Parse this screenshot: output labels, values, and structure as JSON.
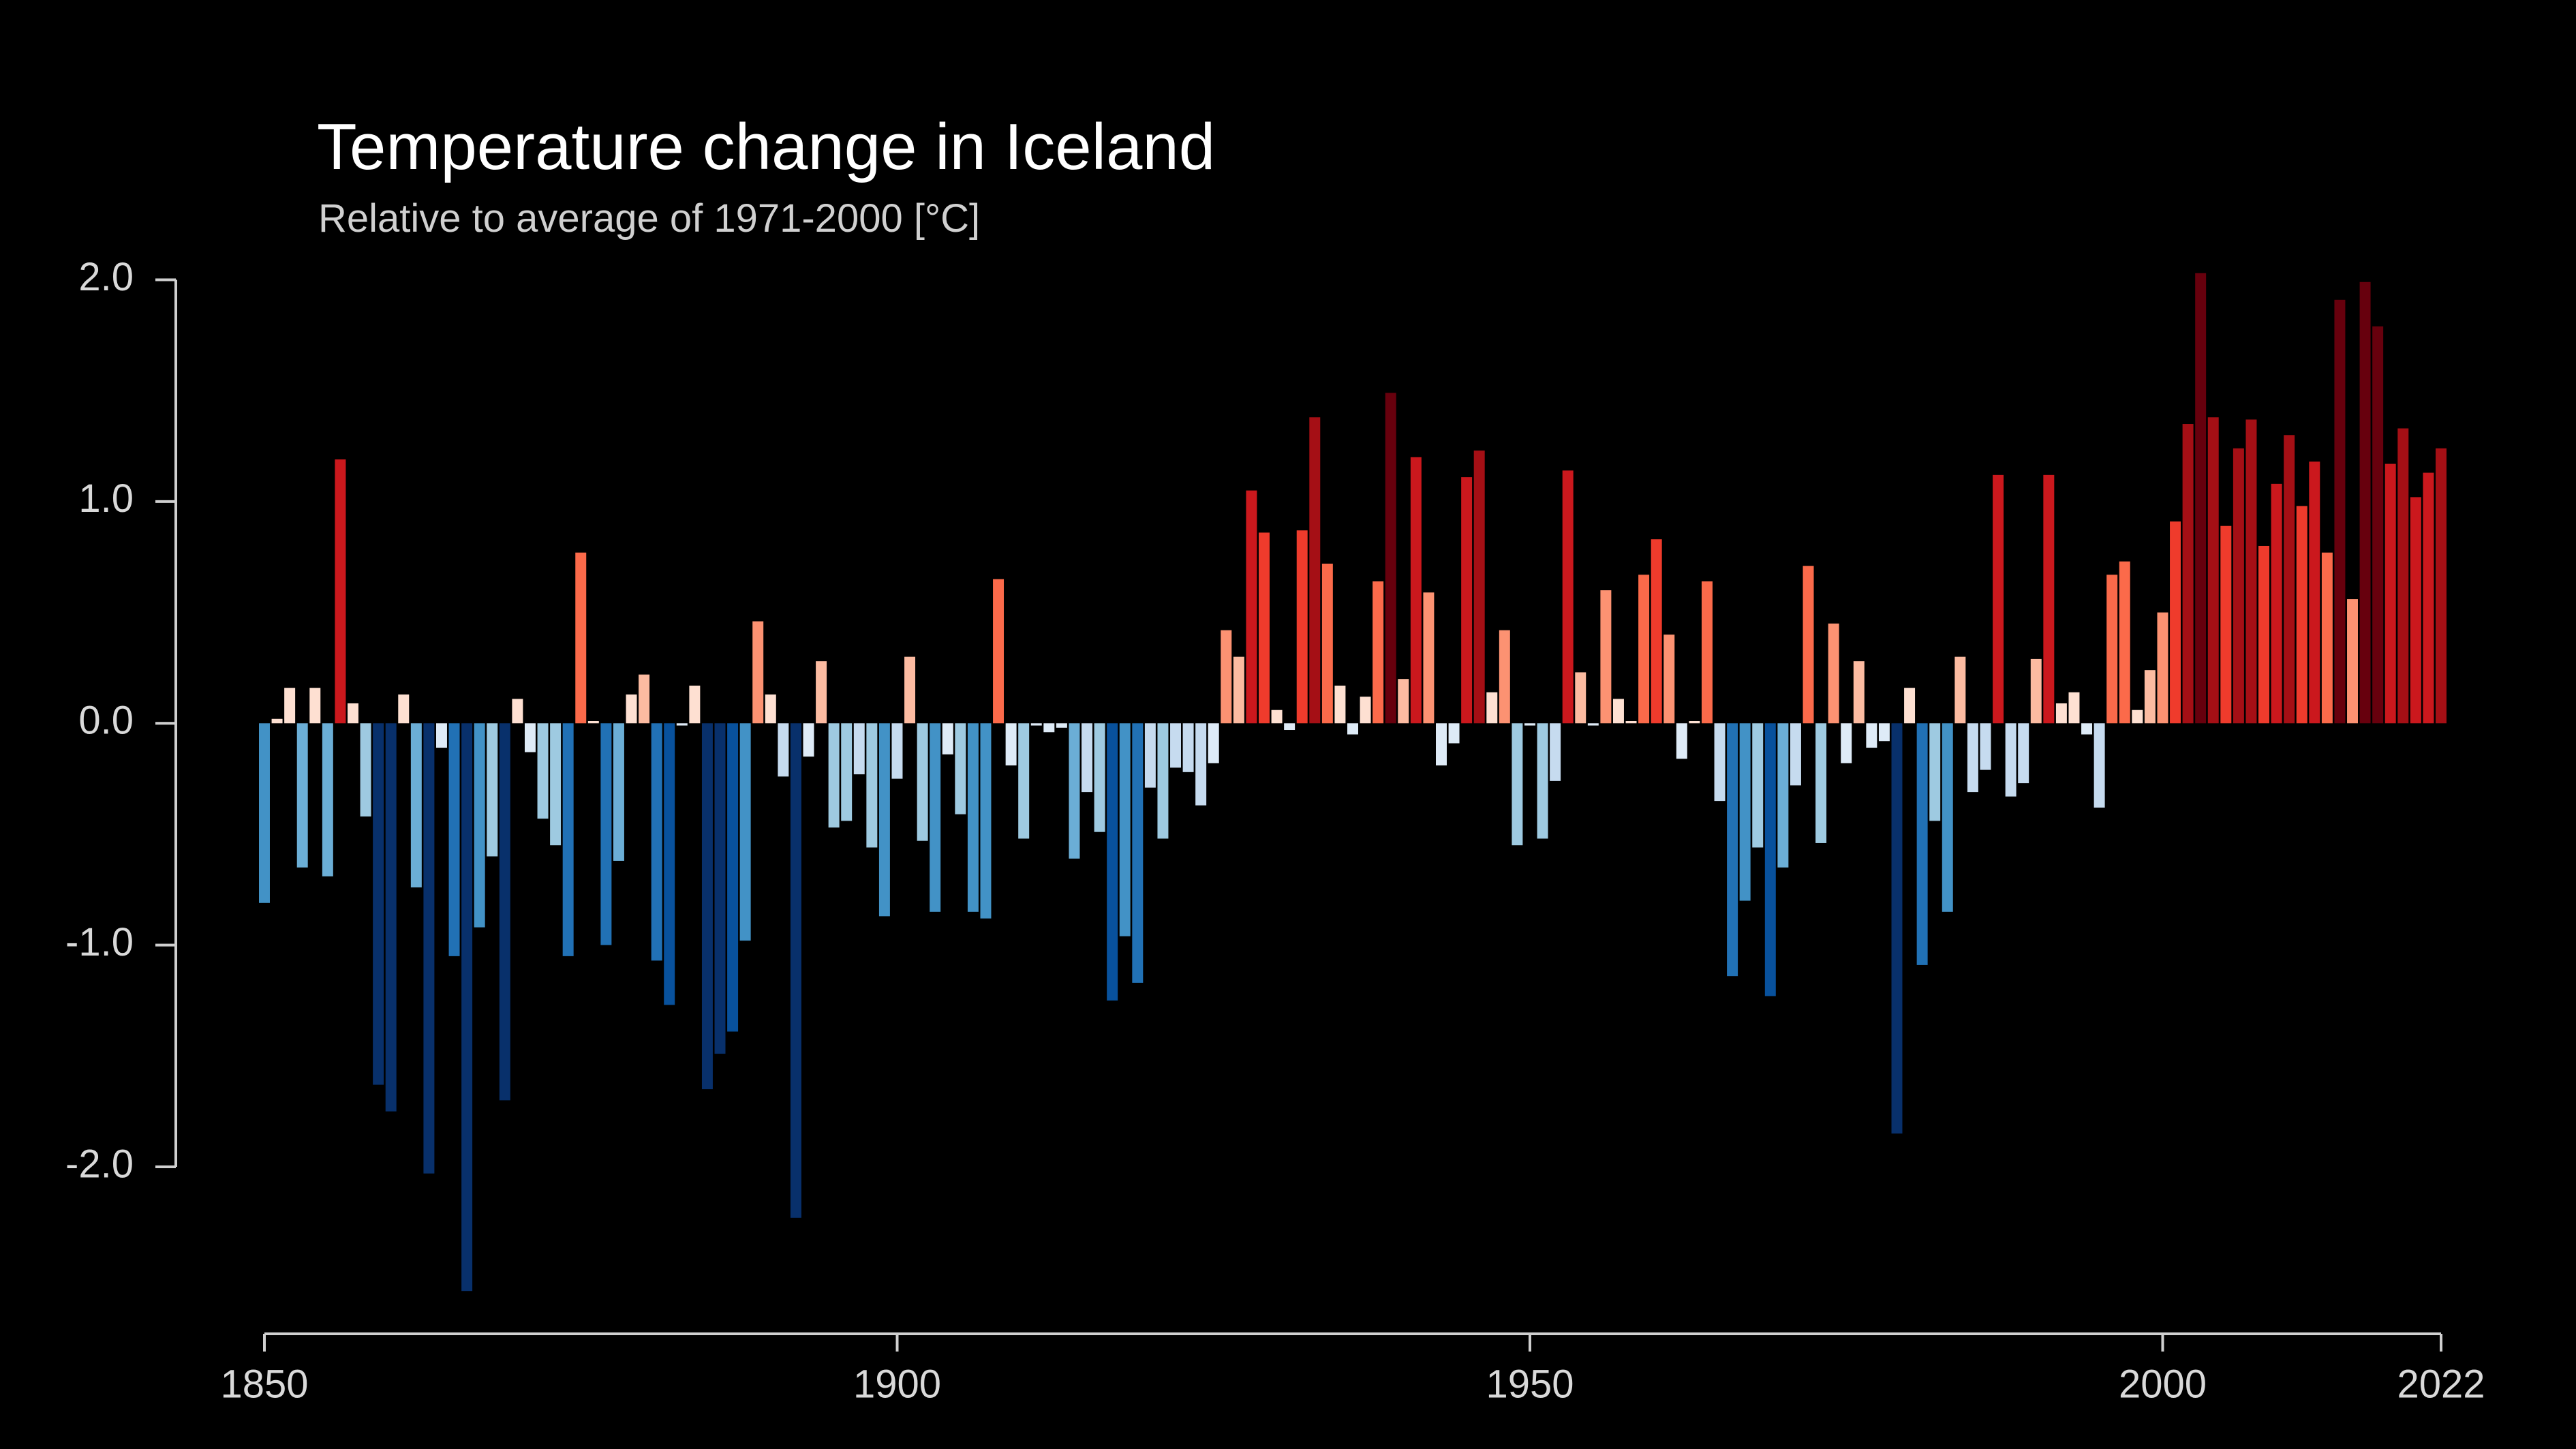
{
  "chart_data": {
    "type": "bar",
    "title": "Temperature change in Iceland",
    "subtitle": "Relative to average of 1971-2000  [°C]",
    "x": [
      1850,
      1851,
      1852,
      1853,
      1854,
      1855,
      1856,
      1857,
      1858,
      1859,
      1860,
      1861,
      1862,
      1863,
      1864,
      1865,
      1866,
      1867,
      1868,
      1869,
      1870,
      1871,
      1872,
      1873,
      1874,
      1875,
      1876,
      1877,
      1878,
      1879,
      1880,
      1881,
      1882,
      1883,
      1884,
      1885,
      1886,
      1887,
      1888,
      1889,
      1890,
      1891,
      1892,
      1893,
      1894,
      1895,
      1896,
      1897,
      1898,
      1899,
      1900,
      1901,
      1902,
      1903,
      1904,
      1905,
      1906,
      1907,
      1908,
      1909,
      1910,
      1911,
      1912,
      1913,
      1914,
      1915,
      1916,
      1917,
      1918,
      1919,
      1920,
      1921,
      1922,
      1923,
      1924,
      1925,
      1926,
      1927,
      1928,
      1929,
      1930,
      1931,
      1932,
      1933,
      1934,
      1935,
      1936,
      1937,
      1938,
      1939,
      1940,
      1941,
      1942,
      1943,
      1944,
      1945,
      1946,
      1947,
      1948,
      1949,
      1950,
      1951,
      1952,
      1953,
      1954,
      1955,
      1956,
      1957,
      1958,
      1959,
      1960,
      1961,
      1962,
      1963,
      1964,
      1965,
      1966,
      1967,
      1968,
      1969,
      1970,
      1971,
      1972,
      1973,
      1974,
      1975,
      1976,
      1977,
      1978,
      1979,
      1980,
      1981,
      1982,
      1983,
      1984,
      1985,
      1986,
      1987,
      1988,
      1989,
      1990,
      1991,
      1992,
      1993,
      1994,
      1995,
      1996,
      1997,
      1998,
      1999,
      2000,
      2001,
      2002,
      2003,
      2004,
      2005,
      2006,
      2007,
      2008,
      2009,
      2010,
      2011,
      2012,
      2013,
      2014,
      2015,
      2016,
      2017,
      2018,
      2019,
      2020,
      2021,
      2022
    ],
    "values": [
      -0.81,
      0.02,
      0.16,
      -0.65,
      0.16,
      -0.69,
      1.19,
      0.09,
      -0.42,
      -1.63,
      -1.75,
      0.13,
      -0.74,
      -2.03,
      -0.11,
      -1.05,
      -2.56,
      -0.92,
      -0.6,
      -1.7,
      0.11,
      -0.13,
      -0.43,
      -0.55,
      -1.05,
      0.77,
      0.01,
      -1.0,
      -0.62,
      0.13,
      0.22,
      -1.07,
      -1.27,
      -0.01,
      0.17,
      -1.65,
      -1.49,
      -1.39,
      -0.98,
      0.46,
      0.13,
      -0.24,
      -2.23,
      -0.15,
      0.28,
      -0.47,
      -0.44,
      -0.23,
      -0.56,
      -0.87,
      -0.25,
      0.3,
      -0.53,
      -0.85,
      -0.14,
      -0.41,
      -0.85,
      -0.88,
      0.65,
      -0.19,
      -0.52,
      -0.01,
      -0.04,
      -0.02,
      -0.61,
      -0.31,
      -0.49,
      -1.25,
      -0.96,
      -1.17,
      -0.29,
      -0.52,
      -0.2,
      -0.22,
      -0.37,
      -0.18,
      0.42,
      0.3,
      1.05,
      0.86,
      0.06,
      -0.03,
      0.87,
      1.38,
      0.72,
      0.17,
      -0.05,
      0.12,
      0.64,
      1.49,
      0.2,
      1.2,
      0.59,
      -0.19,
      -0.09,
      1.11,
      1.23,
      0.14,
      0.42,
      -0.55,
      -0.01,
      -0.52,
      -0.26,
      1.14,
      0.23,
      -0.01,
      0.6,
      0.11,
      0.01,
      0.67,
      0.83,
      0.4,
      -0.16,
      0.01,
      0.64,
      -0.35,
      -1.14,
      -0.8,
      -0.56,
      -1.23,
      -0.65,
      -0.28,
      0.71,
      -0.54,
      0.45,
      -0.18,
      0.28,
      -0.11,
      -0.08,
      -1.85,
      0.16,
      -1.09,
      -0.44,
      -0.85,
      0.3,
      -0.31,
      -0.21,
      1.12,
      -0.33,
      -0.27,
      0.29,
      1.12,
      0.09,
      0.14,
      -0.05,
      -0.38,
      0.67,
      0.73,
      0.06,
      0.24,
      0.5,
      0.91,
      1.35,
      2.03,
      1.38,
      0.89,
      1.24,
      1.37,
      0.8,
      1.08,
      1.3,
      0.98,
      1.18,
      0.77,
      1.91,
      0.56,
      1.99,
      1.79,
      1.17,
      1.33,
      1.02,
      1.13,
      1.24
    ],
    "palette": {
      "negative": [
        "#deebf7",
        "#c6dbef",
        "#9ecae1",
        "#6baed6",
        "#4292c6",
        "#2171b5",
        "#08519c",
        "#08306b"
      ],
      "positive": [
        "#fee0d2",
        "#fcbba1",
        "#fc9272",
        "#fb6a4a",
        "#ef3b2c",
        "#cb181d",
        "#a50f15",
        "#67000d"
      ]
    },
    "xlim": [
      1850,
      2022
    ],
    "xticks": [
      1850,
      1900,
      1950,
      2000,
      2022
    ],
    "ylim": [
      -2.75,
      2.1
    ],
    "yticks": [
      {
        "value": 2,
        "label": "2.0"
      },
      {
        "value": 1,
        "label": "1.0"
      },
      {
        "value": 0,
        "label": "0.0"
      },
      {
        "value": -1,
        "label": "-1.0"
      },
      {
        "value": -2,
        "label": "-2.0"
      }
    ]
  }
}
